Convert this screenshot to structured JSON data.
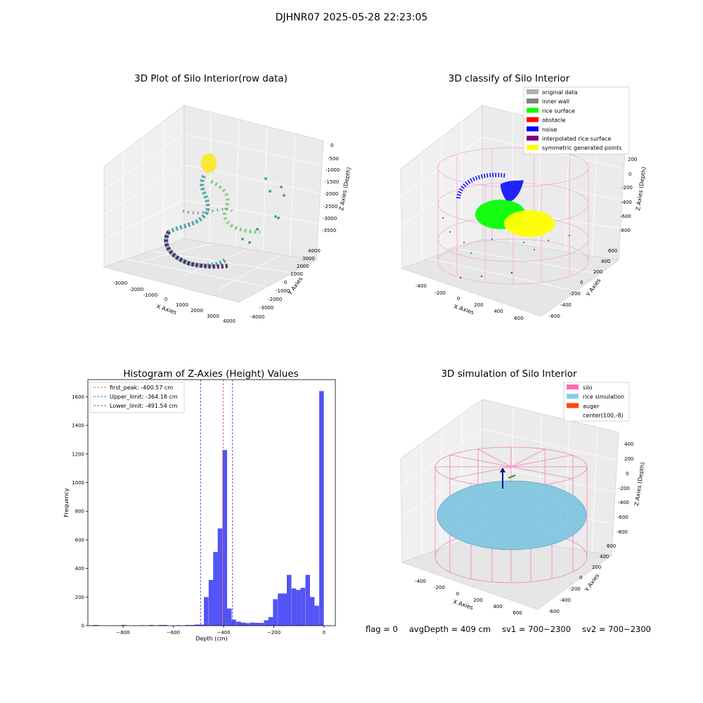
{
  "suptitle": "DJHNR07 2025-05-28 22:23:05",
  "status": {
    "flag": "flag = 0",
    "avg_depth": "avgDepth = 409 cm",
    "sv1": "sv1 = 700~2300",
    "sv2": "sv2 = 700~2300"
  },
  "colors": {
    "hist_bar": "#4a4af5",
    "peak_line": "#e0302a",
    "limit_line": "#2b2bd9",
    "silo_wire": "#f47fbd",
    "rice_sim": "#87c7e0",
    "rice_surface": "#00ff00",
    "noise": "#0000ff",
    "symmetric": "#ffff00"
  },
  "chart_data": [
    {
      "type": "scatter",
      "title": "3D Plot of Silo Interior(row data)",
      "xlabel": "X Axies",
      "ylabel": "Y Axies",
      "zlabel": "Z Axies (Depth)",
      "xticks": [
        "-3000",
        "-2000",
        "-1000",
        "0",
        "1000",
        "2000",
        "3000",
        "4000"
      ],
      "yticks": [
        "-4000",
        "-3000",
        "-2000",
        "-1000",
        "0",
        "1000",
        "2000",
        "3000",
        "4000"
      ],
      "zticks": [
        "0",
        "-500",
        "-1000",
        "-1500",
        "-2000",
        "-2500",
        "-3000",
        "-3500"
      ],
      "xlim": [
        -3500,
        4500
      ],
      "ylim": [
        -4500,
        4500
      ],
      "zlim": [
        -3800,
        200
      ],
      "colormap": "viridis (by depth)"
    },
    {
      "type": "scatter",
      "title": "3D classify of Silo Interior",
      "xlabel": "X Axies",
      "ylabel": "Y Axies",
      "zlabel": "Z Axies (Depth)",
      "xticks": [
        "-400",
        "-200",
        "0",
        "200",
        "400",
        "600"
      ],
      "yticks": [
        "-600",
        "-400",
        "-200",
        "0",
        "200",
        "400",
        "600"
      ],
      "zticks": [
        "200",
        "0",
        "-200",
        "-400",
        "-600",
        "-800"
      ],
      "xlim": [
        -500,
        700
      ],
      "ylim": [
        -700,
        700
      ],
      "zlim": [
        -950,
        350
      ],
      "legend": [
        {
          "label": "original data",
          "color": "#b0b0b0"
        },
        {
          "label": "inner wall",
          "color": "#808080"
        },
        {
          "label": "rice surface",
          "color": "#00ff00"
        },
        {
          "label": "obstacle",
          "color": "#ff0000"
        },
        {
          "label": "noise",
          "color": "#0000ff"
        },
        {
          "label": "interpolated rice surface",
          "color": "#800080"
        },
        {
          "label": "symmetric generated points",
          "color": "#ffff00"
        }
      ],
      "legend_position": "top-right"
    },
    {
      "type": "bar",
      "title": "Histogram of Z-Axies (Height) Values",
      "xlabel": "Depth (cm)",
      "ylabel": "Frequency",
      "xlim": [
        -940,
        45
      ],
      "ylim": [
        0,
        1720
      ],
      "xticks": [
        -800,
        -600,
        -400,
        -200,
        0
      ],
      "yticks": [
        0,
        200,
        400,
        600,
        800,
        1000,
        1200,
        1400,
        1600
      ],
      "bin_width": 18.3,
      "bins": [
        {
          "x": -908,
          "v": 5
        },
        {
          "x": -798,
          "v": 5
        },
        {
          "x": -725,
          "v": 3
        },
        {
          "x": -688,
          "v": 5
        },
        {
          "x": -652,
          "v": 5
        },
        {
          "x": -633,
          "v": 5
        },
        {
          "x": -578,
          "v": 3
        },
        {
          "x": -542,
          "v": 5
        },
        {
          "x": -523,
          "v": 5
        },
        {
          "x": -505,
          "v": 8
        },
        {
          "x": -487,
          "v": 8
        },
        {
          "x": -469,
          "v": 200
        },
        {
          "x": -450,
          "v": 320
        },
        {
          "x": -432,
          "v": 515
        },
        {
          "x": -414,
          "v": 680
        },
        {
          "x": -395,
          "v": 1228
        },
        {
          "x": -377,
          "v": 120
        },
        {
          "x": -359,
          "v": 42
        },
        {
          "x": -340,
          "v": 28
        },
        {
          "x": -322,
          "v": 22
        },
        {
          "x": -304,
          "v": 18
        },
        {
          "x": -285,
          "v": 22
        },
        {
          "x": -267,
          "v": 20
        },
        {
          "x": -249,
          "v": 20
        },
        {
          "x": -230,
          "v": 38
        },
        {
          "x": -212,
          "v": 60
        },
        {
          "x": -194,
          "v": 185
        },
        {
          "x": -175,
          "v": 225
        },
        {
          "x": -157,
          "v": 225
        },
        {
          "x": -139,
          "v": 355
        },
        {
          "x": -120,
          "v": 260
        },
        {
          "x": -102,
          "v": 250
        },
        {
          "x": -84,
          "v": 265
        },
        {
          "x": -65,
          "v": 355
        },
        {
          "x": -47,
          "v": 200
        },
        {
          "x": -29,
          "v": 140
        },
        {
          "x": -10,
          "v": 1640
        }
      ],
      "vlines": [
        {
          "label": "first_peak: -400.57 cm",
          "x": -400.57,
          "color": "#e0302a"
        },
        {
          "label": "Upper_limit: -364.18 cm",
          "x": -364.18,
          "color": "#2b2bd9"
        },
        {
          "label": "Lower_limit: -491.54 cm",
          "x": -491.54,
          "color": "#2b2bd9"
        }
      ],
      "legend_position": "top-left"
    },
    {
      "type": "scatter",
      "title": "3D simulation of Silo Interior",
      "xlabel": "X Axies",
      "ylabel": "Y Axies",
      "zlabel": "Z Axies (Depth)",
      "xticks": [
        "-400",
        "-200",
        "0",
        "200",
        "400",
        "600"
      ],
      "yticks": [
        "-600",
        "-400",
        "-200",
        "0",
        "200",
        "400",
        "600"
      ],
      "zticks": [
        "400",
        "200",
        "0",
        "-200",
        "-400",
        "-600",
        "-800"
      ],
      "xlim": [
        -500,
        700
      ],
      "ylim": [
        -700,
        700
      ],
      "zlim": [
        -950,
        500
      ],
      "legend": [
        {
          "label": "silo",
          "color": "#ff69b4"
        },
        {
          "label": "rice simulation",
          "color": "#87ceeb"
        },
        {
          "label": "auger",
          "color": "#ff4500"
        },
        {
          "label": "center(100,-8)",
          "color": ""
        }
      ],
      "legend_position": "top-right"
    }
  ]
}
